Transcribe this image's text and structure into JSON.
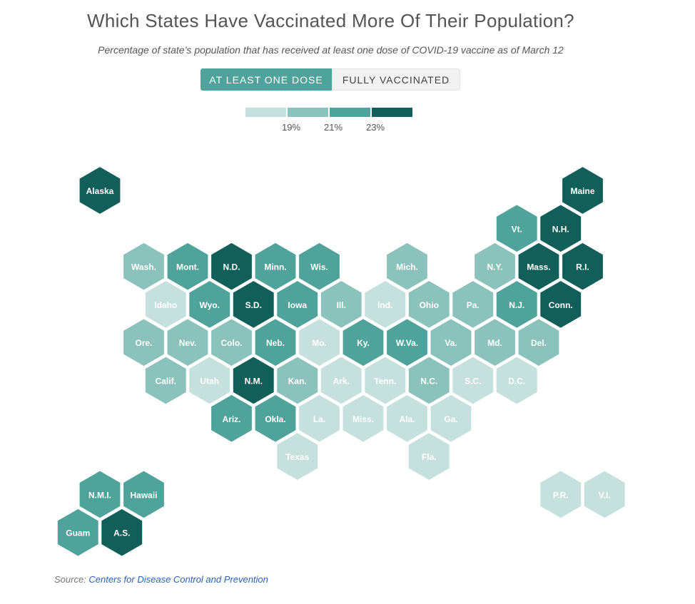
{
  "title": "Which States Have Vaccinated More Of Their Population?",
  "subtitle": "Percentage of state’s population that has received at least one dose of COVID-19 vaccine as of March 12",
  "toggle": {
    "active_label": "AT LEAST ONE DOSE",
    "inactive_label": "FULLY VACCINATED"
  },
  "legend": {
    "colors": [
      "#c5e0dd",
      "#8cc2bc",
      "#4fa39a",
      "#125f59"
    ],
    "labels": [
      "19%",
      "21%",
      "23%"
    ]
  },
  "source": {
    "prefix": "Source: ",
    "link_text": "Centers for Disease Control and Prevention"
  },
  "map": {
    "regions": [
      {
        "label": "Alaska",
        "row": 0,
        "col": 0,
        "bucket": 3
      },
      {
        "label": "Maine",
        "row": 0,
        "col": 11,
        "bucket": 3
      },
      {
        "label": "Vt.",
        "row": 1,
        "col": 9.5,
        "bucket": 2
      },
      {
        "label": "N.H.",
        "row": 1,
        "col": 10.5,
        "bucket": 3
      },
      {
        "label": "Wash.",
        "row": 2,
        "col": 1,
        "bucket": 1
      },
      {
        "label": "Mont.",
        "row": 2,
        "col": 2,
        "bucket": 2
      },
      {
        "label": "N.D.",
        "row": 2,
        "col": 3,
        "bucket": 3
      },
      {
        "label": "Minn.",
        "row": 2,
        "col": 4,
        "bucket": 2
      },
      {
        "label": "Wis.",
        "row": 2,
        "col": 5,
        "bucket": 2
      },
      {
        "label": "Mich.",
        "row": 2,
        "col": 7,
        "bucket": 1
      },
      {
        "label": "N.Y.",
        "row": 2,
        "col": 9,
        "bucket": 1
      },
      {
        "label": "Mass.",
        "row": 2,
        "col": 10,
        "bucket": 3
      },
      {
        "label": "R.I.",
        "row": 2,
        "col": 11,
        "bucket": 3
      },
      {
        "label": "Idaho",
        "row": 3,
        "col": 1.5,
        "bucket": 0
      },
      {
        "label": "Wyo.",
        "row": 3,
        "col": 2.5,
        "bucket": 2
      },
      {
        "label": "S.D.",
        "row": 3,
        "col": 3.5,
        "bucket": 3
      },
      {
        "label": "Iowa",
        "row": 3,
        "col": 4.5,
        "bucket": 2
      },
      {
        "label": "Ill.",
        "row": 3,
        "col": 5.5,
        "bucket": 1
      },
      {
        "label": "Ind.",
        "row": 3,
        "col": 6.5,
        "bucket": 0
      },
      {
        "label": "Ohio",
        "row": 3,
        "col": 7.5,
        "bucket": 1
      },
      {
        "label": "Pa.",
        "row": 3,
        "col": 8.5,
        "bucket": 1
      },
      {
        "label": "N.J.",
        "row": 3,
        "col": 9.5,
        "bucket": 2
      },
      {
        "label": "Conn.",
        "row": 3,
        "col": 10.5,
        "bucket": 3
      },
      {
        "label": "Ore.",
        "row": 4,
        "col": 1,
        "bucket": 1
      },
      {
        "label": "Nev.",
        "row": 4,
        "col": 2,
        "bucket": 1
      },
      {
        "label": "Colo.",
        "row": 4,
        "col": 3,
        "bucket": 1
      },
      {
        "label": "Neb.",
        "row": 4,
        "col": 4,
        "bucket": 2
      },
      {
        "label": "Mo.",
        "row": 4,
        "col": 5,
        "bucket": 0
      },
      {
        "label": "Ky.",
        "row": 4,
        "col": 6,
        "bucket": 2
      },
      {
        "label": "W.Va.",
        "row": 4,
        "col": 7,
        "bucket": 2
      },
      {
        "label": "Va.",
        "row": 4,
        "col": 8,
        "bucket": 1
      },
      {
        "label": "Md.",
        "row": 4,
        "col": 9,
        "bucket": 1
      },
      {
        "label": "Del.",
        "row": 4,
        "col": 10,
        "bucket": 1
      },
      {
        "label": "Calif.",
        "row": 5,
        "col": 1.5,
        "bucket": 1
      },
      {
        "label": "Utah",
        "row": 5,
        "col": 2.5,
        "bucket": 0
      },
      {
        "label": "N.M.",
        "row": 5,
        "col": 3.5,
        "bucket": 3
      },
      {
        "label": "Kan.",
        "row": 5,
        "col": 4.5,
        "bucket": 1
      },
      {
        "label": "Ark.",
        "row": 5,
        "col": 5.5,
        "bucket": 0
      },
      {
        "label": "Tenn.",
        "row": 5,
        "col": 6.5,
        "bucket": 0
      },
      {
        "label": "N.C.",
        "row": 5,
        "col": 7.5,
        "bucket": 1
      },
      {
        "label": "S.C.",
        "row": 5,
        "col": 8.5,
        "bucket": 0
      },
      {
        "label": "D.C.",
        "row": 5,
        "col": 9.5,
        "bucket": 0
      },
      {
        "label": "Ariz.",
        "row": 6,
        "col": 3,
        "bucket": 2
      },
      {
        "label": "Okla.",
        "row": 6,
        "col": 4,
        "bucket": 2
      },
      {
        "label": "La.",
        "row": 6,
        "col": 5,
        "bucket": 0
      },
      {
        "label": "Miss.",
        "row": 6,
        "col": 6,
        "bucket": 0
      },
      {
        "label": "Ala.",
        "row": 6,
        "col": 7,
        "bucket": 0
      },
      {
        "label": "Ga.",
        "row": 6,
        "col": 8,
        "bucket": 0
      },
      {
        "label": "Texas",
        "row": 7,
        "col": 4.5,
        "bucket": 0
      },
      {
        "label": "Fla.",
        "row": 7,
        "col": 7.5,
        "bucket": 0
      },
      {
        "label": "N.M.I.",
        "row": 8,
        "col": 0,
        "bucket": 2
      },
      {
        "label": "Hawaii",
        "row": 8,
        "col": 1,
        "bucket": 2
      },
      {
        "label": "P.R.",
        "row": 8,
        "col": 10.5,
        "bucket": 0
      },
      {
        "label": "V.I.",
        "row": 8,
        "col": 11.5,
        "bucket": 0
      },
      {
        "label": "Guam",
        "row": 9,
        "col": -0.5,
        "bucket": 2
      },
      {
        "label": "A.S.",
        "row": 9,
        "col": 0.5,
        "bucket": 3
      }
    ]
  }
}
